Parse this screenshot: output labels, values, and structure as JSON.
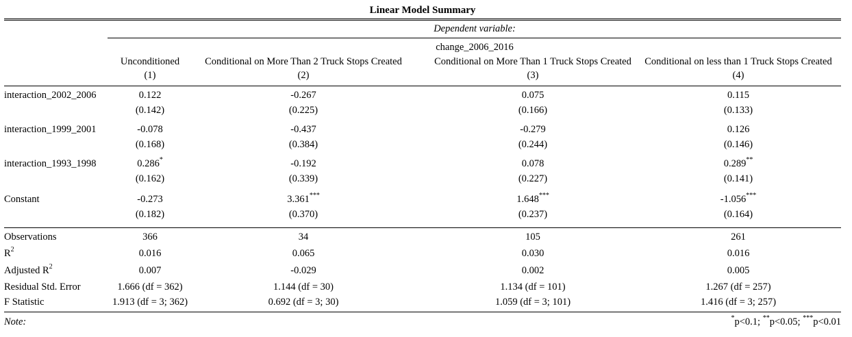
{
  "title": "Linear Model Summary",
  "dependent_label": "Dependent variable:",
  "dependent_var": "change_2006_2016",
  "columns": [
    {
      "name": "Unconditioned",
      "num": "(1)"
    },
    {
      "name": "Conditional on More Than 2 Truck Stops Created",
      "num": "(2)"
    },
    {
      "name": "Conditional on More Than 1 Truck Stops Created",
      "num": "(3)"
    },
    {
      "name": "Conditional on less than 1 Truck Stops Created",
      "num": "(4)"
    }
  ],
  "coefficients": [
    {
      "name": "interaction_2002_2006",
      "est": [
        "0.122",
        "-0.267",
        "0.075",
        "0.115"
      ],
      "stars": [
        "",
        "",
        "",
        ""
      ],
      "se": [
        "(0.142)",
        "(0.225)",
        "(0.166)",
        "(0.133)"
      ]
    },
    {
      "name": "interaction_1999_2001",
      "est": [
        "-0.078",
        "-0.437",
        "-0.279",
        "0.126"
      ],
      "stars": [
        "",
        "",
        "",
        ""
      ],
      "se": [
        "(0.168)",
        "(0.384)",
        "(0.244)",
        "(0.146)"
      ]
    },
    {
      "name": "interaction_1993_1998",
      "est": [
        "0.286",
        "-0.192",
        "0.078",
        "0.289"
      ],
      "stars": [
        "*",
        "",
        "",
        "**"
      ],
      "se": [
        "(0.162)",
        "(0.339)",
        "(0.227)",
        "(0.141)"
      ]
    },
    {
      "name": "Constant",
      "est": [
        "-0.273",
        "3.361",
        "1.648",
        "-1.056"
      ],
      "stars": [
        "",
        "***",
        "***",
        "***"
      ],
      "se": [
        "(0.182)",
        "(0.370)",
        "(0.237)",
        "(0.164)"
      ]
    }
  ],
  "stats": [
    {
      "label": "Observations",
      "sup": "",
      "values": [
        "366",
        "34",
        "105",
        "261"
      ]
    },
    {
      "label": "R",
      "sup": "2",
      "values": [
        "0.016",
        "0.065",
        "0.030",
        "0.016"
      ]
    },
    {
      "label": "Adjusted R",
      "sup": "2",
      "values": [
        "0.007",
        "-0.029",
        "0.002",
        "0.005"
      ]
    },
    {
      "label": "Residual Std. Error",
      "sup": "",
      "values": [
        "1.666 (df = 362)",
        "1.144 (df = 30)",
        "1.134 (df = 101)",
        "1.267 (df = 257)"
      ]
    },
    {
      "label": "F Statistic",
      "sup": "",
      "values": [
        "1.913 (df = 3; 362)",
        "0.692 (df = 3; 30)",
        "1.059 (df = 3; 101)",
        "1.416 (df = 3; 257)"
      ]
    }
  ],
  "note": {
    "label": "Note:",
    "parts": [
      {
        "sup": "*",
        "text": "p<0.1; "
      },
      {
        "sup": "**",
        "text": "p<0.05; "
      },
      {
        "sup": "***",
        "text": "p<0.01"
      }
    ]
  }
}
